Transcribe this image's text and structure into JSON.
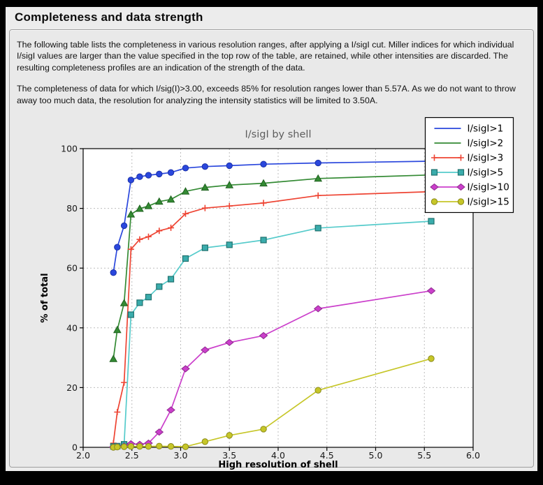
{
  "window": {
    "title": "Completeness and data strength"
  },
  "intro": {
    "paragraph1": "The following table lists the completeness in various resolution ranges, after applying a I/sigI cut. Miller indices for which individual I/sigI values are larger than the value specified in the top row of the table, are retained, while other intensities are discarded. The resulting completeness profiles are an indication of the strength of the data.",
    "paragraph2": "The completeness of data for which I/sig(I)>3.00, exceeds  85% for resolution ranges lower than 5.57A. As we do not want to throw away too much data, the resolution for analyzing the intensity statistics will be limited to 3.50A."
  },
  "chart_data": {
    "type": "line",
    "title": "I/sigI by shell",
    "xlabel": "High resolution of shell",
    "ylabel": "% of total",
    "xlim": [
      2.0,
      6.0
    ],
    "ylim": [
      0,
      100
    ],
    "x_ticks": [
      "2.0",
      "2.5",
      "3.0",
      "3.5",
      "4.0",
      "4.5",
      "5.0",
      "5.5",
      "6.0"
    ],
    "y_ticks": [
      "0",
      "20",
      "40",
      "60",
      "80",
      "100"
    ],
    "grid": true,
    "legend_position": "upper right",
    "x": [
      2.31,
      2.35,
      2.42,
      2.49,
      2.58,
      2.67,
      2.78,
      2.9,
      3.05,
      3.25,
      3.5,
      3.85,
      4.41,
      5.57
    ],
    "series": [
      {
        "name": "I/sigI>1",
        "color": "#2a47dd",
        "marker": "circle",
        "marker_fill": "#2a47dd",
        "marker_edge": "#1b31a8",
        "legend_marker": false,
        "values": [
          58.5,
          67.0,
          74.2,
          89.5,
          90.6,
          91.1,
          91.5,
          92.0,
          93.5,
          94.0,
          94.3,
          94.8,
          95.2,
          95.8
        ]
      },
      {
        "name": "I/sigI>2",
        "color": "#338a33",
        "marker": "triangle",
        "marker_fill": "#338a33",
        "marker_edge": "#1f611f",
        "legend_marker": false,
        "values": [
          29.6,
          39.3,
          48.3,
          78.0,
          79.9,
          80.8,
          82.3,
          83.0,
          85.7,
          87.0,
          87.8,
          88.4,
          90.0,
          91.2
        ]
      },
      {
        "name": "I/sigI>3",
        "color": "#ee4433",
        "marker": "plus",
        "marker_fill": "#ee4433",
        "marker_edge": "#ee4433",
        "legend_marker": true,
        "values": [
          1.4,
          11.8,
          21.7,
          66.3,
          69.6,
          70.5,
          72.5,
          73.5,
          78.2,
          80.1,
          80.8,
          81.8,
          84.3,
          85.6
        ]
      },
      {
        "name": "I/sigI>5",
        "color": "#55cbcb",
        "marker": "square",
        "marker_fill": "#3aacac",
        "marker_edge": "#20716e",
        "legend_marker": true,
        "values": [
          0.3,
          0.4,
          1.0,
          44.4,
          48.4,
          50.3,
          53.8,
          56.3,
          63.2,
          66.8,
          67.8,
          69.4,
          73.4,
          75.7
        ]
      },
      {
        "name": "I/sigI>10",
        "color": "#cb3fcb",
        "marker": "diamond",
        "marker_fill": "#cb3fcb",
        "marker_edge": "#8e2b8e",
        "legend_marker": true,
        "values": [
          0.1,
          0.2,
          0.4,
          1.2,
          1.0,
          1.4,
          5.1,
          12.5,
          26.3,
          32.6,
          35.1,
          37.4,
          46.4,
          52.4
        ]
      },
      {
        "name": "I/sigI>15",
        "color": "#c6c628",
        "marker": "circle",
        "marker_fill": "#c6c628",
        "marker_edge": "#8b8b1c",
        "legend_marker": true,
        "values": [
          0.0,
          0.1,
          0.2,
          0.3,
          0.3,
          0.3,
          0.4,
          0.3,
          0.2,
          1.9,
          4.0,
          6.1,
          19.1,
          29.7
        ]
      }
    ]
  }
}
